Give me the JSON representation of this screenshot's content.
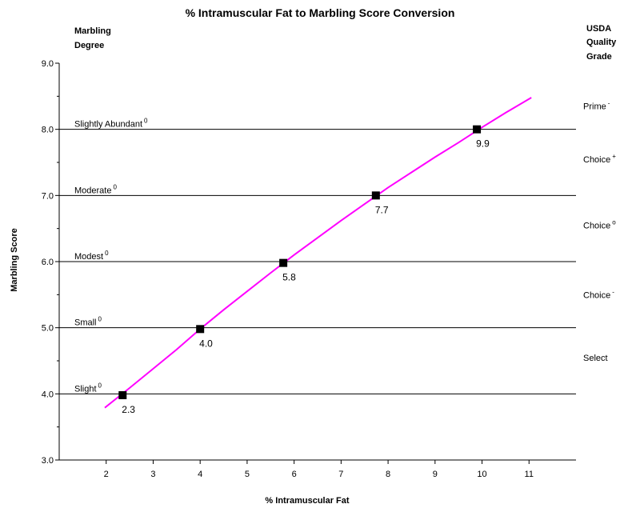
{
  "chart_data": {
    "type": "scatter",
    "title": "% Intramuscular Fat to Marbling Score Conversion",
    "xlabel": "% Intramuscular Fat",
    "ylabel": "Marbling Score",
    "left_header": [
      "Marbling",
      "Degree"
    ],
    "right_header": [
      "USDA",
      "Quality",
      "Grade"
    ],
    "xlim": [
      1,
      12
    ],
    "ylim": [
      3.0,
      9.0
    ],
    "x_ticks": [
      2,
      3,
      4,
      5,
      6,
      7,
      8,
      9,
      10,
      11
    ],
    "y_ticks": [
      "3.0",
      "4.0",
      "5.0",
      "6.0",
      "7.0",
      "8.0",
      "9.0"
    ],
    "horizontal_lines": [
      4,
      5,
      6,
      7,
      8
    ],
    "points": [
      {
        "x": 2.35,
        "y": 3.98,
        "label": "2.3"
      },
      {
        "x": 4.0,
        "y": 4.98,
        "label": "4.0"
      },
      {
        "x": 5.77,
        "y": 5.98,
        "label": "5.8"
      },
      {
        "x": 7.74,
        "y": 7.0,
        "label": "7.7"
      },
      {
        "x": 9.89,
        "y": 8.0,
        "label": "9.9"
      }
    ],
    "curve": {
      "color": "#ff00ff",
      "x": [
        1.97,
        2.5,
        3.0,
        3.5,
        4.0,
        4.5,
        5.0,
        5.5,
        6.0,
        6.5,
        7.0,
        7.5,
        8.0,
        8.5,
        9.0,
        9.5,
        10.0,
        10.5,
        11.05
      ],
      "y": [
        3.79,
        4.09,
        4.38,
        4.67,
        4.98,
        5.27,
        5.55,
        5.83,
        6.1,
        6.36,
        6.62,
        6.87,
        7.12,
        7.35,
        7.58,
        7.8,
        8.03,
        8.25,
        8.48
      ]
    },
    "marbling_degrees": [
      {
        "name": "Slight",
        "sup": "0",
        "y": 4.0
      },
      {
        "name": "Small",
        "sup": "0",
        "y": 5.0
      },
      {
        "name": "Modest",
        "sup": "0",
        "y": 6.0
      },
      {
        "name": "Moderate",
        "sup": "0",
        "y": 7.0
      },
      {
        "name": "Slightly Abundant",
        "sup": "0",
        "y": 8.0
      }
    ],
    "quality_grades": [
      {
        "name": "Prime",
        "sup": "-",
        "y": 8.35
      },
      {
        "name": "Choice",
        "sup": "+",
        "y": 7.55
      },
      {
        "name": "Choice",
        "sup": "o",
        "y": 6.55
      },
      {
        "name": "Choice",
        "sup": "-",
        "y": 5.5
      },
      {
        "name": "Select",
        "sup": "",
        "y": 4.55
      }
    ],
    "grid": false,
    "legend": "none"
  }
}
